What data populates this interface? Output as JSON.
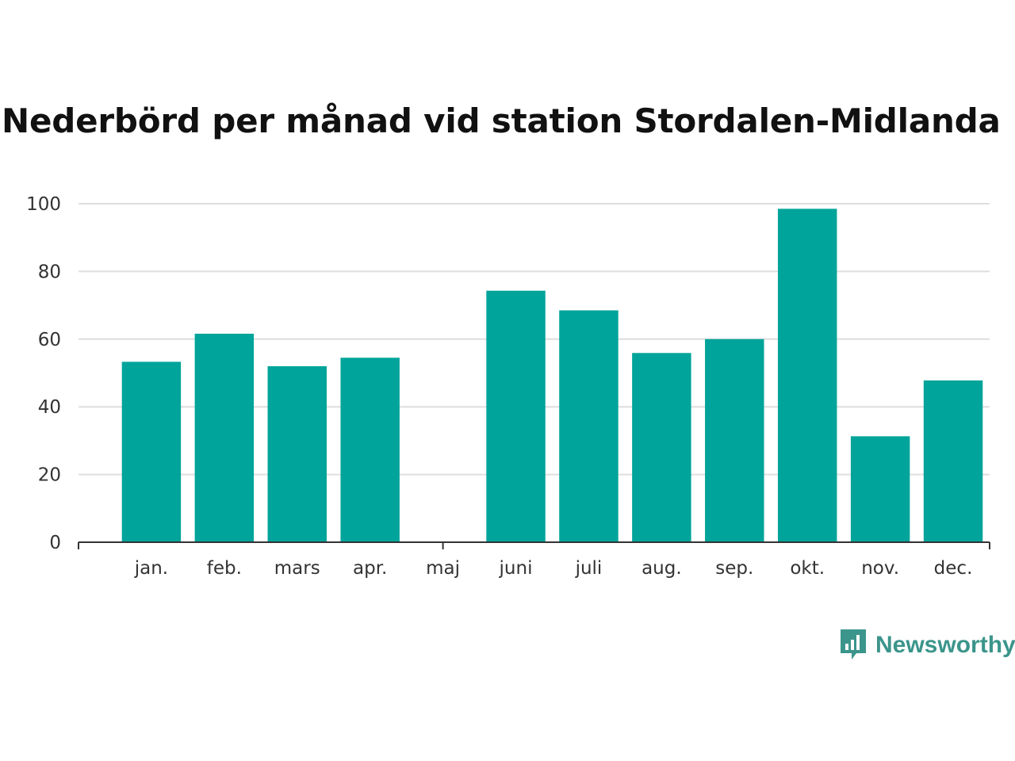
{
  "chart_data": {
    "type": "bar",
    "title": "Nederbörd per månad vid station Stordalen-Midlanda D",
    "xlabel": "",
    "ylabel": "",
    "categories": [
      "jan.",
      "feb.",
      "mars",
      "apr.",
      "maj",
      "juni",
      "juli",
      "aug.",
      "sep.",
      "okt.",
      "nov.",
      "dec."
    ],
    "values": [
      53.3,
      61.6,
      52.0,
      54.5,
      null,
      74.3,
      68.5,
      55.9,
      60.0,
      98.5,
      31.3,
      47.8
    ],
    "ylim": [
      0,
      100
    ],
    "yticks": [
      0,
      20,
      40,
      60,
      80,
      100
    ],
    "grid": true,
    "bar_color": "#00a49a"
  },
  "brand": {
    "name": "Newsworthy",
    "icon": "newsworthy-logo-icon",
    "color": "#3b958b"
  }
}
